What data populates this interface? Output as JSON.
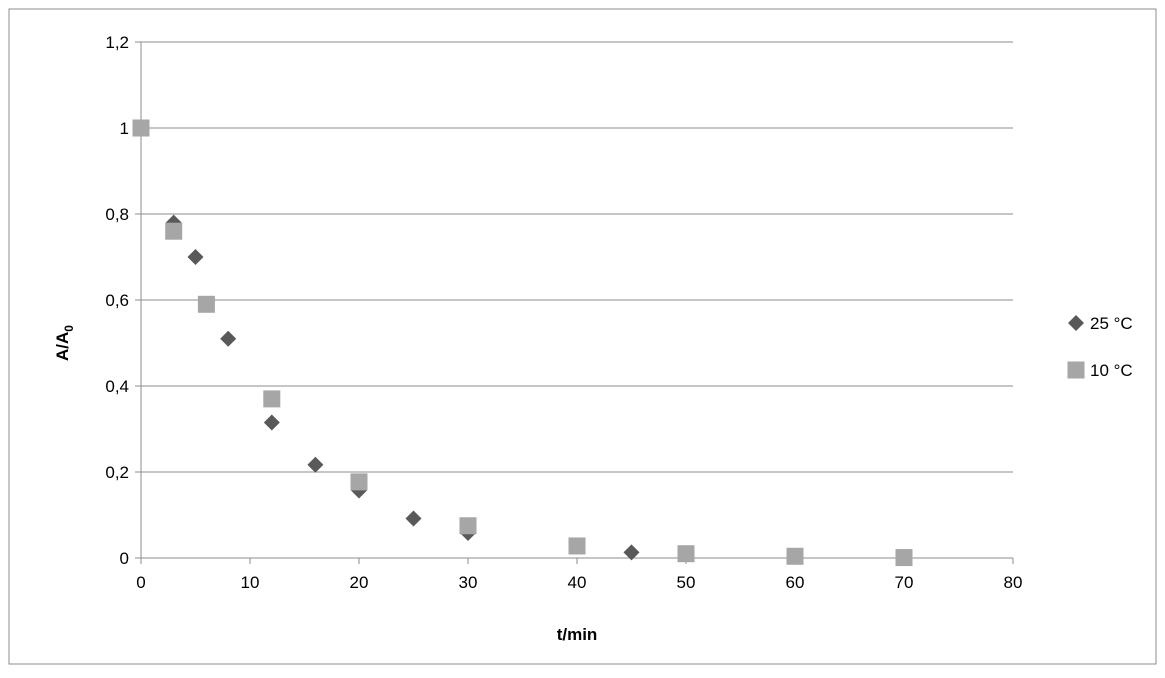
{
  "chart_data": {
    "type": "scatter",
    "title": "",
    "xlabel": "t/min",
    "ylabel_main": "A/A",
    "ylabel_sub": "0",
    "xlim": [
      0,
      80
    ],
    "ylim": [
      0,
      1.2
    ],
    "x_ticks": [
      "0",
      "10",
      "20",
      "30",
      "40",
      "50",
      "60",
      "70",
      "80"
    ],
    "y_ticks": [
      "0",
      "0,2",
      "0,4",
      "0,6",
      "0,8",
      "1",
      "1,2"
    ],
    "grid": "horizontal",
    "legend_position": "right",
    "series": [
      {
        "name": "25 °C",
        "marker": "diamond",
        "color": "#595959",
        "x": [
          0,
          3,
          5,
          8,
          12,
          16,
          20,
          25,
          30,
          45,
          60,
          70
        ],
        "y": [
          1.0,
          0.78,
          0.7,
          0.51,
          0.315,
          0.217,
          0.157,
          0.092,
          0.058,
          0.013,
          0.003,
          0.001
        ]
      },
      {
        "name": "10 °C",
        "marker": "square",
        "color": "#a6a6a6",
        "x": [
          0,
          3,
          6,
          12,
          20,
          30,
          40,
          50,
          60,
          70
        ],
        "y": [
          1.0,
          0.76,
          0.59,
          0.37,
          0.177,
          0.075,
          0.028,
          0.01,
          0.004,
          0.001
        ]
      }
    ]
  }
}
